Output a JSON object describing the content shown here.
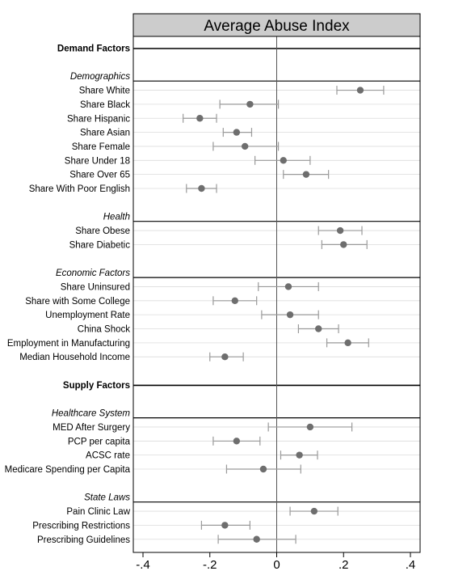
{
  "chart_data": {
    "type": "scatter",
    "title": "Average Abuse Index",
    "xlim": [
      -0.4,
      0.4
    ],
    "xticks": [
      {
        "value": -0.4,
        "label": "-.4"
      },
      {
        "value": -0.2,
        "label": "-.2"
      },
      {
        "value": 0,
        "label": "0"
      },
      {
        "value": 0.2,
        "label": ".2"
      },
      {
        "value": 0.4,
        "label": ".4"
      }
    ],
    "reference_line": 0,
    "rows": [
      {
        "kind": "header",
        "label": "Demand Factors"
      },
      {
        "kind": "blank"
      },
      {
        "kind": "subheader",
        "label": "Demographics"
      },
      {
        "kind": "item",
        "label": "Share White",
        "estimate": 0.25,
        "ci_low": 0.18,
        "ci_high": 0.32
      },
      {
        "kind": "item",
        "label": "Share Black",
        "estimate": -0.08,
        "ci_low": -0.17,
        "ci_high": 0.005
      },
      {
        "kind": "item",
        "label": "Share Hispanic",
        "estimate": -0.23,
        "ci_low": -0.28,
        "ci_high": -0.18
      },
      {
        "kind": "item",
        "label": "Share Asian",
        "estimate": -0.12,
        "ci_low": -0.16,
        "ci_high": -0.075
      },
      {
        "kind": "item",
        "label": "Share Female",
        "estimate": -0.095,
        "ci_low": -0.19,
        "ci_high": 0.005
      },
      {
        "kind": "item",
        "label": "Share Under 18",
        "estimate": 0.02,
        "ci_low": -0.065,
        "ci_high": 0.1
      },
      {
        "kind": "item",
        "label": "Share Over 65",
        "estimate": 0.088,
        "ci_low": 0.02,
        "ci_high": 0.155
      },
      {
        "kind": "item",
        "label": "Share With Poor English",
        "estimate": -0.225,
        "ci_low": -0.27,
        "ci_high": -0.18
      },
      {
        "kind": "blank"
      },
      {
        "kind": "subheader",
        "label": "Health"
      },
      {
        "kind": "item",
        "label": "Share Obese",
        "estimate": 0.19,
        "ci_low": 0.125,
        "ci_high": 0.255
      },
      {
        "kind": "item",
        "label": "Share Diabetic",
        "estimate": 0.2,
        "ci_low": 0.135,
        "ci_high": 0.27
      },
      {
        "kind": "blank"
      },
      {
        "kind": "subheader",
        "label": "Economic Factors"
      },
      {
        "kind": "item",
        "label": "Share Uninsured",
        "estimate": 0.035,
        "ci_low": -0.055,
        "ci_high": 0.125
      },
      {
        "kind": "item",
        "label": "Share with Some College",
        "estimate": -0.125,
        "ci_low": -0.19,
        "ci_high": -0.06
      },
      {
        "kind": "item",
        "label": "Unemployment Rate",
        "estimate": 0.04,
        "ci_low": -0.045,
        "ci_high": 0.125
      },
      {
        "kind": "item",
        "label": "China Shock",
        "estimate": 0.125,
        "ci_low": 0.065,
        "ci_high": 0.185
      },
      {
        "kind": "item",
        "label": "Employment in Manufacturing",
        "estimate": 0.213,
        "ci_low": 0.15,
        "ci_high": 0.275
      },
      {
        "kind": "item",
        "label": "Median Household Income",
        "estimate": -0.155,
        "ci_low": -0.2,
        "ci_high": -0.1
      },
      {
        "kind": "blank"
      },
      {
        "kind": "header",
        "label": "Supply Factors"
      },
      {
        "kind": "blank"
      },
      {
        "kind": "subheader",
        "label": "Healthcare System"
      },
      {
        "kind": "item",
        "label": "MED After Surgery",
        "estimate": 0.1,
        "ci_low": -0.025,
        "ci_high": 0.225
      },
      {
        "kind": "item",
        "label": "PCP per capita",
        "estimate": -0.12,
        "ci_low": -0.19,
        "ci_high": -0.05
      },
      {
        "kind": "item",
        "label": "ACSC rate",
        "estimate": 0.068,
        "ci_low": 0.012,
        "ci_high": 0.122
      },
      {
        "kind": "item",
        "label": "Medicare Spending per Capita",
        "estimate": -0.04,
        "ci_low": -0.15,
        "ci_high": 0.072
      },
      {
        "kind": "blank"
      },
      {
        "kind": "subheader",
        "label": "State Laws"
      },
      {
        "kind": "item",
        "label": "Pain Clinic Law",
        "estimate": 0.112,
        "ci_low": 0.04,
        "ci_high": 0.183
      },
      {
        "kind": "item",
        "label": "Prescribing Restrictions",
        "estimate": -0.155,
        "ci_low": -0.225,
        "ci_high": -0.08
      },
      {
        "kind": "item",
        "label": "Prescribing Guidelines",
        "estimate": -0.06,
        "ci_low": -0.175,
        "ci_high": 0.057
      }
    ],
    "colors": {
      "marker": "#6e6e6e",
      "ci_line": "#9a9a9a",
      "gridline": "#dcdcdc",
      "title_band": "#cccccc",
      "frame": "#000000"
    }
  }
}
